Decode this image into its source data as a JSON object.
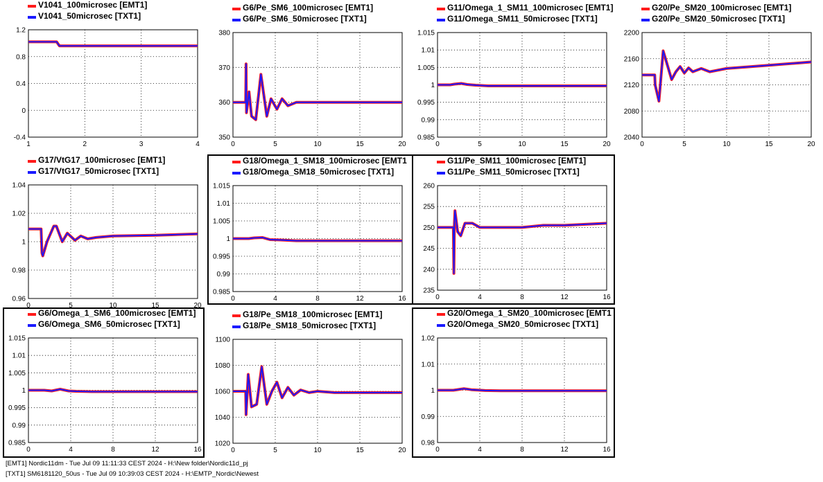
{
  "colors": {
    "emt": "#ff1a1a",
    "txt": "#1a1aff",
    "grid": "#000000",
    "frame": "#000000"
  },
  "footer": {
    "line1": "[EMT1] Nordic11dm - Tue Jul 09 11:11:33 CEST 2024 - H:\\New folder\\Nordic11d_pj",
    "line2": "[TXT1] SM6181120_50us - Tue Jul 09 10:39:03 CEST 2024 - H:\\EMTP_Nordic\\Newest"
  },
  "chart_data": [
    {
      "id": "c0",
      "type": "line",
      "legend": [
        "V1041_100microsec [EMT1]",
        "V1041_50microsec [TXT1]"
      ],
      "xlim": [
        1,
        4
      ],
      "xticks": [
        "1",
        "2",
        "3",
        "4"
      ],
      "ylim": [
        -0.4,
        1.2
      ],
      "yticks": [
        "-0.4",
        "0",
        "0.4",
        "0.8",
        "1.2"
      ],
      "grid": true,
      "selected": false,
      "series": [
        {
          "name": "V1041_100microsec [EMT1]",
          "x": [
            1,
            1.5,
            1.55,
            1.6,
            4
          ],
          "y": [
            1.02,
            1.02,
            0.96,
            0.96,
            0.96
          ]
        },
        {
          "name": "V1041_50microsec [TXT1]",
          "x": [
            1,
            1.5,
            1.55,
            1.6,
            4
          ],
          "y": [
            1.02,
            1.02,
            0.96,
            0.96,
            0.96
          ]
        }
      ]
    },
    {
      "id": "c1",
      "type": "line",
      "legend": [
        "G6/Pe_SM6_100microsec [EMT1]",
        "G6/Pe_SM6_50microsec [TXT1]"
      ],
      "xlim": [
        0,
        20
      ],
      "xticks": [
        "0",
        "5",
        "10",
        "15",
        "20"
      ],
      "ylim": [
        350,
        380
      ],
      "yticks": [
        "350",
        "360",
        "370",
        "380"
      ],
      "grid": true,
      "selected": false,
      "series": [
        {
          "name": "G6/Pe_SM6_100microsec [EMT1]",
          "x": [
            0,
            1.5,
            1.55,
            1.6,
            1.9,
            2.2,
            2.7,
            3.3,
            4,
            4.5,
            5.2,
            5.8,
            6.5,
            7.5,
            9,
            10,
            12,
            15,
            20
          ],
          "y": [
            360,
            360,
            371,
            357,
            363,
            356,
            355,
            368,
            356,
            361,
            358,
            361,
            359,
            360,
            360,
            360,
            360,
            360,
            360
          ]
        },
        {
          "name": "G6/Pe_SM6_50microsec [TXT1]",
          "x": [
            0,
            1.5,
            1.55,
            1.6,
            1.9,
            2.2,
            2.7,
            3.3,
            4,
            4.5,
            5.2,
            5.8,
            6.5,
            7.5,
            9,
            10,
            12,
            15,
            20
          ],
          "y": [
            360,
            360,
            371,
            357,
            363,
            356,
            355,
            368,
            356,
            361,
            358,
            361,
            359,
            360,
            360,
            360,
            360,
            360,
            360
          ]
        }
      ]
    },
    {
      "id": "c2",
      "type": "line",
      "legend": [
        "G11/Omega_1_SM11_100microsec [EMT1]",
        "G11/Omega_SM11_50microsec [TXT1]"
      ],
      "xlim": [
        0,
        20
      ],
      "xticks": [
        "0",
        "5",
        "10",
        "15",
        "20"
      ],
      "ylim": [
        0.985,
        1.015
      ],
      "yticks": [
        "0.985",
        "0.99",
        "0.995",
        "1",
        "1.005",
        "1.01",
        "1.015"
      ],
      "grid": true,
      "selected": false,
      "series": [
        {
          "name": "G11/Omega_1_SM11_100microsec [EMT1]",
          "x": [
            0,
            1.5,
            2,
            2.8,
            3.5,
            4.5,
            6,
            20
          ],
          "y": [
            1,
            1,
            1.0002,
            1.0004,
            1.0001,
            0.9999,
            0.9997,
            0.9997
          ]
        },
        {
          "name": "G11/Omega_SM11_50microsec [TXT1]",
          "x": [
            0,
            1.5,
            2,
            2.8,
            3.5,
            4.5,
            6,
            20
          ],
          "y": [
            1,
            1,
            1.0002,
            1.0004,
            1.0001,
            0.9999,
            0.9997,
            0.9997
          ]
        }
      ]
    },
    {
      "id": "c3",
      "type": "line",
      "legend": [
        "G20/Pe_SM20_100microsec [EMT1]",
        "G20/Pe_SM20_50microsec [TXT1]"
      ],
      "xlim": [
        0,
        20
      ],
      "xticks": [
        "0",
        "5",
        "10",
        "15",
        "20"
      ],
      "ylim": [
        2040,
        2200
      ],
      "yticks": [
        "2040",
        "2080",
        "2120",
        "2160",
        "2200"
      ],
      "grid": true,
      "selected": false,
      "series": [
        {
          "name": "G20/Pe_SM20_100microsec [EMT1]",
          "x": [
            0,
            1.5,
            1.55,
            2,
            2.5,
            3,
            3.5,
            4,
            4.5,
            5,
            5.5,
            6,
            7,
            8,
            10,
            15,
            20
          ],
          "y": [
            2135,
            2135,
            2120,
            2095,
            2172,
            2150,
            2128,
            2140,
            2148,
            2138,
            2146,
            2140,
            2145,
            2140,
            2145,
            2150,
            2155
          ]
        },
        {
          "name": "G20/Pe_SM20_50microsec [TXT1]",
          "x": [
            0,
            1.5,
            1.55,
            2,
            2.5,
            3,
            3.5,
            4,
            4.5,
            5,
            5.5,
            6,
            7,
            8,
            10,
            15,
            20
          ],
          "y": [
            2135,
            2135,
            2120,
            2095,
            2172,
            2150,
            2128,
            2140,
            2148,
            2138,
            2146,
            2140,
            2145,
            2140,
            2145,
            2150,
            2155
          ]
        }
      ]
    },
    {
      "id": "c4",
      "type": "line",
      "legend": [
        "G17/VtG17_100microsec [EMT1]",
        "G17/VtG17_50microsec [TXT1]"
      ],
      "xlim": [
        0,
        20
      ],
      "xticks": [
        "0",
        "5",
        "10",
        "15",
        "20"
      ],
      "ylim": [
        0.96,
        1.04
      ],
      "yticks": [
        "0.96",
        "0.98",
        "1",
        "1.02",
        "1.04"
      ],
      "grid": true,
      "selected": false,
      "series": [
        {
          "name": "G17/VtG17_100microsec [EMT1]",
          "x": [
            0,
            1.5,
            1.6,
            1.7,
            2.2,
            3,
            3.3,
            4,
            4.6,
            5.5,
            6.2,
            7,
            8,
            10,
            15,
            20
          ],
          "y": [
            1.009,
            1.009,
            0.992,
            0.99,
            1,
            1.011,
            1.011,
            1,
            1.006,
            1.001,
            1.004,
            1.002,
            1.003,
            1.004,
            1.0045,
            1.0055
          ]
        },
        {
          "name": "G17/VtG17_50microsec [TXT1]",
          "x": [
            0,
            1.5,
            1.6,
            1.7,
            2.2,
            3,
            3.3,
            4,
            4.6,
            5.5,
            6.2,
            7,
            8,
            10,
            15,
            20
          ],
          "y": [
            1.009,
            1.009,
            0.992,
            0.99,
            1,
            1.011,
            1.011,
            1,
            1.006,
            1.001,
            1.004,
            1.002,
            1.003,
            1.004,
            1.0045,
            1.0055
          ]
        }
      ]
    },
    {
      "id": "c5",
      "type": "line",
      "legend": [
        "G18/Omega_1_SM18_100microsec [EMT1",
        "G18/Omega_SM18_50microsec [TXT1]"
      ],
      "xlim": [
        0,
        16
      ],
      "xticks": [
        "0",
        "4",
        "8",
        "12",
        "16"
      ],
      "ylim": [
        0.985,
        1.015
      ],
      "yticks": [
        "0.985",
        "0.99",
        "0.995",
        "1",
        "1.005",
        "1.01",
        "1.015"
      ],
      "grid": true,
      "selected": true,
      "series": [
        {
          "name": "G18/Omega_1_SM18_100microsec [EMT1",
          "x": [
            0,
            1.5,
            2,
            2.8,
            3.5,
            4.5,
            6,
            16
          ],
          "y": [
            1,
            1,
            1.0002,
            1.0003,
            0.9997,
            0.9996,
            0.9994,
            0.9994
          ]
        },
        {
          "name": "G18/Omega_SM18_50microsec [TXT1]",
          "x": [
            0,
            1.5,
            2,
            2.8,
            3.5,
            4.5,
            6,
            16
          ],
          "y": [
            1,
            1,
            1.0002,
            1.0003,
            0.9997,
            0.9996,
            0.9994,
            0.9994
          ]
        }
      ]
    },
    {
      "id": "c6",
      "type": "line",
      "legend": [
        "G11/Pe_SM11_100microsec [EMT1]",
        "G11/Pe_SM11_50microsec [TXT1]"
      ],
      "xlim": [
        0,
        16
      ],
      "xticks": [
        "0",
        "4",
        "8",
        "12",
        "16"
      ],
      "ylim": [
        235,
        260
      ],
      "yticks": [
        "235",
        "240",
        "245",
        "250",
        "255",
        "260"
      ],
      "grid": true,
      "selected": true,
      "series": [
        {
          "name": "G11/Pe_SM11_100microsec [EMT1]",
          "x": [
            0,
            1.5,
            1.55,
            1.6,
            1.65,
            1.9,
            2.2,
            2.6,
            3.3,
            4,
            5,
            6,
            8,
            10,
            12,
            16
          ],
          "y": [
            250,
            250,
            239,
            251,
            254,
            249,
            248,
            251,
            251,
            250,
            250,
            250,
            250,
            250.5,
            250.5,
            251
          ]
        },
        {
          "name": "G11/Pe_SM11_50microsec [TXT1]",
          "x": [
            0,
            1.5,
            1.55,
            1.6,
            1.65,
            1.9,
            2.2,
            2.6,
            3.3,
            4,
            5,
            6,
            8,
            10,
            12,
            16
          ],
          "y": [
            250,
            250,
            239,
            251,
            254,
            249,
            248,
            251,
            251,
            250,
            250,
            250,
            250,
            250.5,
            250.5,
            251
          ]
        }
      ]
    },
    {
      "id": "c7",
      "type": "line",
      "legend": [
        "G6/Omega_1_SM6_100microsec [EMT1]",
        "G6/Omega_SM6_50microsec [TXT1]"
      ],
      "xlim": [
        0,
        16
      ],
      "xticks": [
        "0",
        "4",
        "8",
        "12",
        "16"
      ],
      "ylim": [
        0.985,
        1.015
      ],
      "yticks": [
        "0.985",
        "0.99",
        "0.995",
        "1",
        "1.005",
        "1.01",
        "1.015"
      ],
      "grid": true,
      "selected": true,
      "series": [
        {
          "name": "G6/Omega_1_SM6_100microsec [EMT1]",
          "x": [
            0,
            1.5,
            2.2,
            3,
            3.8,
            4.5,
            6,
            16
          ],
          "y": [
            1,
            1,
            0.9998,
            1.0003,
            0.9998,
            0.9997,
            0.9996,
            0.9996
          ]
        },
        {
          "name": "G6/Omega_SM6_50microsec [TXT1]",
          "x": [
            0,
            1.5,
            2.2,
            3,
            3.8,
            4.5,
            6,
            16
          ],
          "y": [
            1,
            1,
            0.9998,
            1.0003,
            0.9998,
            0.9997,
            0.9996,
            0.9996
          ]
        }
      ]
    },
    {
      "id": "c8",
      "type": "line",
      "legend": [
        "G18/Pe_SM18_100microsec [EMT1]",
        "G18/Pe_SM18_50microsec [TXT1]"
      ],
      "xlim": [
        0,
        20
      ],
      "xticks": [
        "0",
        "5",
        "10",
        "15",
        "20"
      ],
      "ylim": [
        1020,
        1100
      ],
      "yticks": [
        "1020",
        "1040",
        "1060",
        "1080",
        "1100"
      ],
      "grid": true,
      "selected": false,
      "series": [
        {
          "name": "G18/Pe_SM18_100microsec [EMT1]",
          "x": [
            0,
            1.5,
            1.55,
            1.8,
            2.2,
            2.8,
            3.4,
            4,
            4.6,
            5.2,
            5.8,
            6.5,
            7.2,
            8,
            9,
            10,
            12,
            15,
            20
          ],
          "y": [
            1060,
            1060,
            1042,
            1073,
            1048,
            1050,
            1079,
            1050,
            1060,
            1067,
            1055,
            1063,
            1057,
            1061,
            1059,
            1060,
            1059,
            1059,
            1059
          ]
        },
        {
          "name": "G18/Pe_SM18_50microsec [TXT1]",
          "x": [
            0,
            1.5,
            1.55,
            1.8,
            2.2,
            2.8,
            3.4,
            4,
            4.6,
            5.2,
            5.8,
            6.5,
            7.2,
            8,
            9,
            10,
            12,
            15,
            20
          ],
          "y": [
            1060,
            1060,
            1042,
            1073,
            1048,
            1050,
            1079,
            1050,
            1060,
            1067,
            1055,
            1063,
            1057,
            1061,
            1059,
            1060,
            1059,
            1059,
            1059
          ]
        }
      ]
    },
    {
      "id": "c9",
      "type": "line",
      "legend": [
        "G20/Omega_1_SM20_100microsec [EMT1",
        "G20/Omega_SM20_50microsec [TXT1]"
      ],
      "xlim": [
        0,
        16
      ],
      "xticks": [
        "0",
        "4",
        "8",
        "12",
        "16"
      ],
      "ylim": [
        0.98,
        1.02
      ],
      "yticks": [
        "0.98",
        "0.99",
        "1",
        "1.01",
        "1.02"
      ],
      "grid": true,
      "selected": true,
      "series": [
        {
          "name": "G20/Omega_1_SM20_100microsec [EMT1",
          "x": [
            0,
            1.5,
            2,
            2.5,
            3.2,
            4.5,
            6,
            16
          ],
          "y": [
            1,
            1,
            1.0003,
            1.0006,
            1.0002,
            0.9999,
            0.9998,
            0.9998
          ]
        },
        {
          "name": "G20/Omega_SM20_50microsec [TXT1]",
          "x": [
            0,
            1.5,
            2,
            2.5,
            3.2,
            4.5,
            6,
            16
          ],
          "y": [
            1,
            1,
            1.0003,
            1.0006,
            1.0002,
            0.9999,
            0.9998,
            0.9998
          ]
        }
      ]
    }
  ]
}
